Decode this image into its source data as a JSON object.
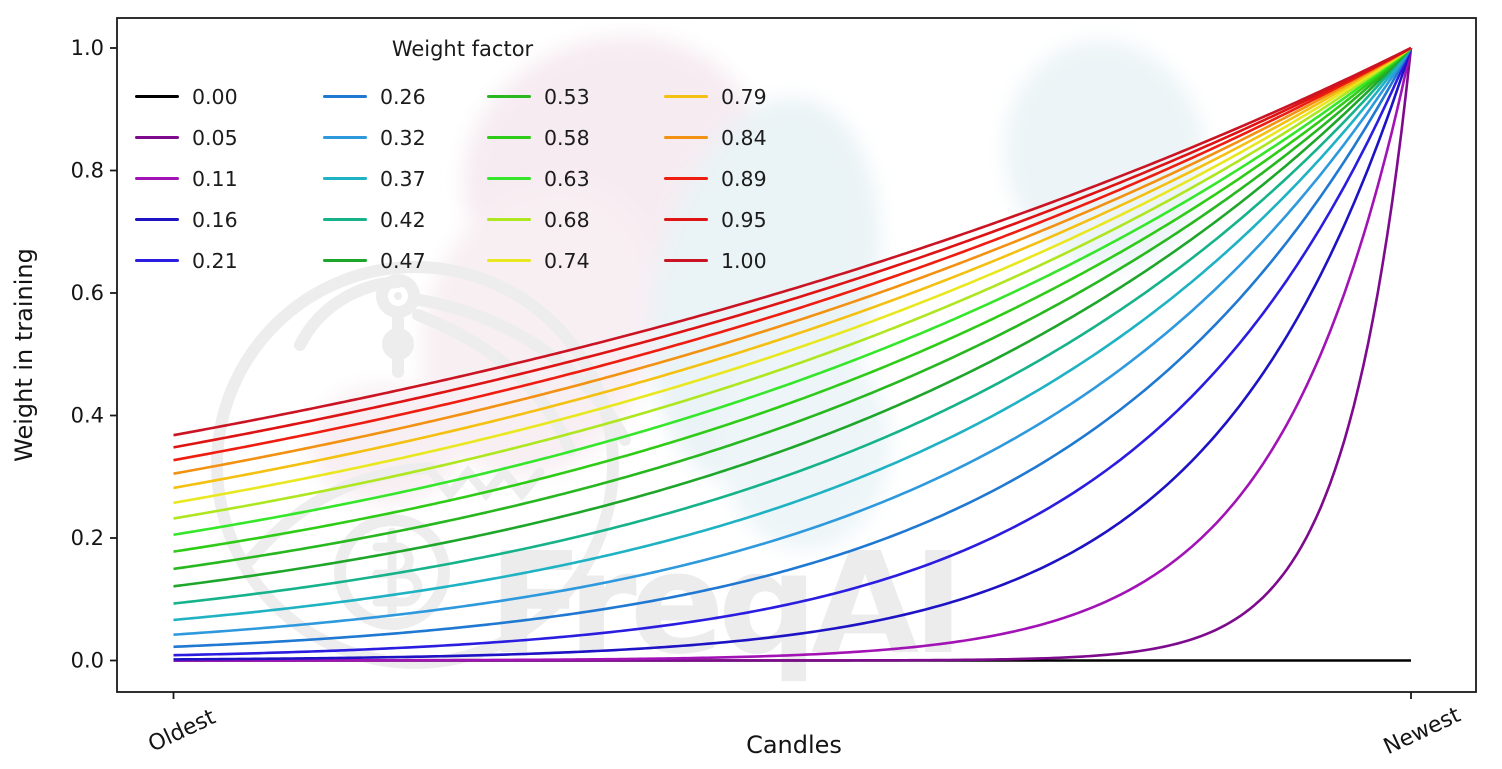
{
  "watermark": {
    "text": "FreqAI"
  },
  "legend": {
    "title": "Weight factor"
  },
  "axes": {
    "xlabel": "Candles",
    "ylabel": "Weight in training",
    "y_tick_labels": [
      "0.0",
      "0.2",
      "0.4",
      "0.6",
      "0.8",
      "1.0"
    ],
    "x_tick_labels": [
      "Oldest",
      "Newest"
    ]
  },
  "chart_data": {
    "type": "line",
    "title": "Weight factor",
    "xlabel": "Candles",
    "ylabel": "Weight in training",
    "xlim_labels": [
      "Oldest",
      "Newest"
    ],
    "ylim": [
      0,
      1
    ],
    "y_ticks": [
      0,
      0.2,
      0.4,
      0.6,
      0.8,
      1.0
    ],
    "grid": false,
    "legend_position": "upper left",
    "legend_columns": 4,
    "formula": "weight(x) = exp(-(1 - x) / weight_factor) for x in [0,1] (Oldest=0, Newest=1); weight_factor = 0 gives weight = 0",
    "series": [
      {
        "label": "0.00",
        "weight_factor": 0.0,
        "color": "#000000"
      },
      {
        "label": "0.05",
        "weight_factor": 0.05263,
        "color": "#7e0a8e"
      },
      {
        "label": "0.11",
        "weight_factor": 0.10526,
        "color": "#a213b5"
      },
      {
        "label": "0.16",
        "weight_factor": 0.15789,
        "color": "#1d12c4"
      },
      {
        "label": "0.21",
        "weight_factor": 0.21053,
        "color": "#2a1de0"
      },
      {
        "label": "0.26",
        "weight_factor": 0.26316,
        "color": "#1f78d1"
      },
      {
        "label": "0.32",
        "weight_factor": 0.31579,
        "color": "#2e99dc"
      },
      {
        "label": "0.37",
        "weight_factor": 0.36842,
        "color": "#1fb2c3"
      },
      {
        "label": "0.42",
        "weight_factor": 0.42105,
        "color": "#16b28a"
      },
      {
        "label": "0.47",
        "weight_factor": 0.47368,
        "color": "#1ea62a"
      },
      {
        "label": "0.53",
        "weight_factor": 0.52632,
        "color": "#27b71f"
      },
      {
        "label": "0.58",
        "weight_factor": 0.57895,
        "color": "#2fcc17"
      },
      {
        "label": "0.63",
        "weight_factor": 0.63158,
        "color": "#35e62a"
      },
      {
        "label": "0.68",
        "weight_factor": 0.68421,
        "color": "#aee620"
      },
      {
        "label": "0.74",
        "weight_factor": 0.73684,
        "color": "#e9e71f"
      },
      {
        "label": "0.79",
        "weight_factor": 0.78947,
        "color": "#f4c011"
      },
      {
        "label": "0.84",
        "weight_factor": 0.84211,
        "color": "#f29112"
      },
      {
        "label": "0.89",
        "weight_factor": 0.89474,
        "color": "#ee1d10"
      },
      {
        "label": "0.95",
        "weight_factor": 0.94737,
        "color": "#de1313"
      },
      {
        "label": "1.00",
        "weight_factor": 1.0,
        "color": "#cb1423"
      }
    ]
  }
}
